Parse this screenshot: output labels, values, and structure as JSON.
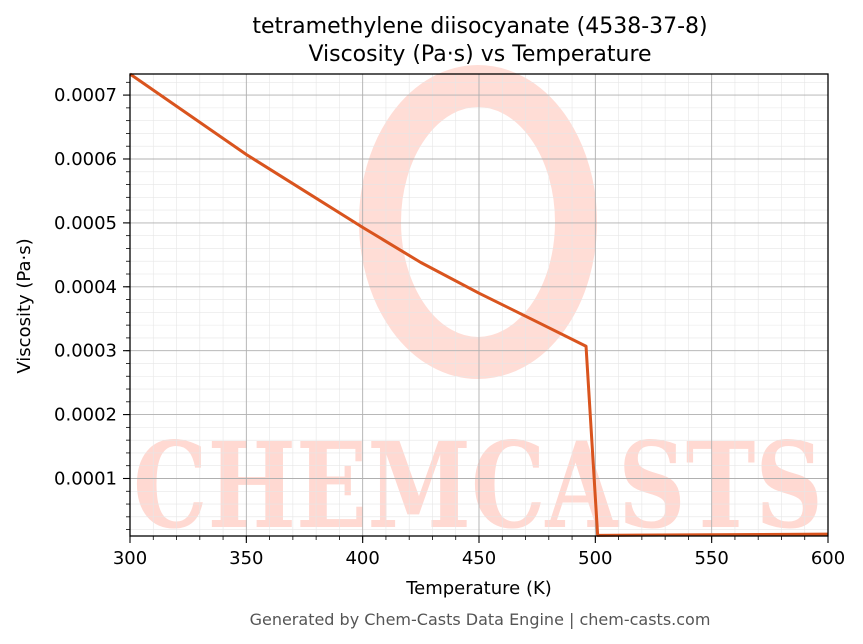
{
  "chart_data": {
    "type": "line",
    "title_line1": "tetramethylene diisocyanate (4538-37-8)",
    "title_line2": "Viscosity (Pa·s) vs Temperature",
    "xlabel": "Temperature (K)",
    "ylabel": "Viscosity (Pa·s)",
    "xlim": [
      300,
      600
    ],
    "ylim": [
      1e-05,
      0.000733
    ],
    "x_ticks": [
      300,
      350,
      400,
      450,
      500,
      550,
      600
    ],
    "x_tick_labels": [
      "300",
      "350",
      "400",
      "450",
      "500",
      "550",
      "600"
    ],
    "y_ticks": [
      0.0001,
      0.0002,
      0.0003,
      0.0004,
      0.0005,
      0.0006,
      0.0007
    ],
    "y_tick_labels": [
      "0.0001",
      "0.0002",
      "0.0003",
      "0.0004",
      "0.0005",
      "0.0006",
      "0.0007"
    ],
    "grid": true,
    "series": [
      {
        "color": "#d9541e",
        "x": [
          300,
          325,
          350,
          375,
          400,
          425,
          450,
          475,
          496,
          501,
          550,
          600
        ],
        "y": [
          0.000733,
          0.00067,
          0.000607,
          0.00055,
          0.000493,
          0.000438,
          0.00039,
          0.000345,
          0.000307,
          1.1e-05,
          1.2e-05,
          1.3e-05
        ]
      }
    ]
  },
  "watermark": {
    "text": "CHEMCASTS",
    "color": "#ffd9d2"
  },
  "footer": "Generated by Chem-Casts Data Engine | chem-casts.com"
}
